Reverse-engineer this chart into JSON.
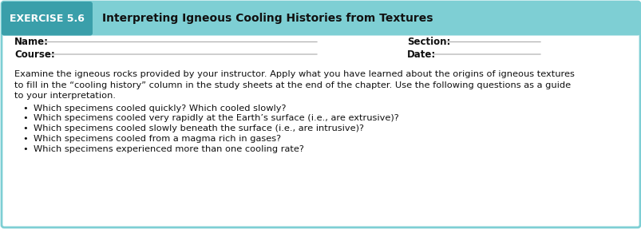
{
  "header_bg_color": "#7ecfd4",
  "header_label_bg": "#3a9faa",
  "exercise_label": "EXERCISE 5.6",
  "title": "Interpreting Igneous Cooling Histories from Textures",
  "body_bg_color": "#ffffff",
  "border_color": "#7ecfd4",
  "outer_border_color": "#c8e8eb",
  "name_label": "Name:",
  "course_label": "Course:",
  "section_label": "Section:",
  "date_label": "Date:",
  "para_line1": "Examine the igneous rocks provided by your instructor. Apply what you have learned about the origins of igneous textures",
  "para_line2": "to fill in the “cooling history” column in the study sheets at the end of the chapter. Use the following questions as a guide",
  "para_line3": "to your interpretation.",
  "bullets": [
    "Which specimens cooled quickly? Which cooled slowly?",
    "Which specimens cooled very rapidly at the Earth’s surface (i.e., are extrusive)?",
    "Which specimens cooled slowly beneath the surface (i.e., are intrusive)?",
    "Which specimens cooled from a magma rich in gases?",
    "Which specimens experienced more than one cooling rate?"
  ],
  "header_font_size": 10.0,
  "exercise_font_size": 9.0,
  "body_font_size": 8.2,
  "label_font_size": 8.5,
  "fig_width": 8.04,
  "fig_height": 2.87,
  "dpi": 100
}
